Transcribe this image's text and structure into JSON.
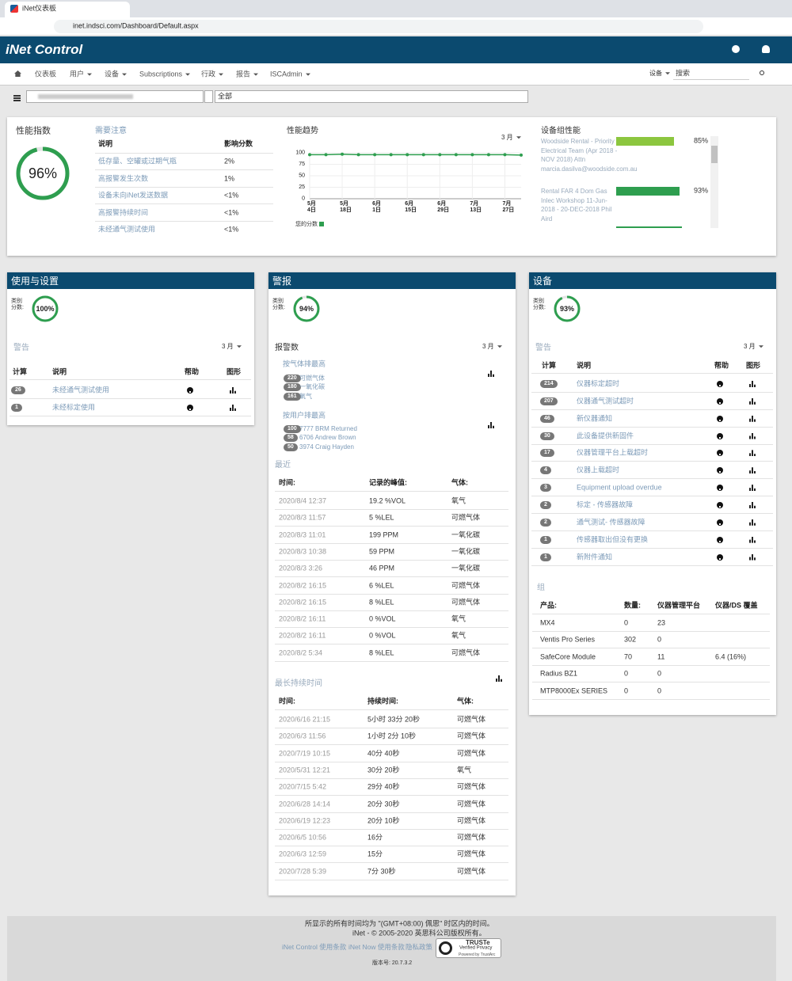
{
  "browser": {
    "tab_title": "iNet仪表板",
    "url": "inet.indsci.com/Dashboard/Default.aspx"
  },
  "nav": {
    "brand": "iNet Control",
    "menu": [
      "仪表板",
      "用户",
      "设备",
      "Subscriptions",
      "行政",
      "报告",
      "ISCAdmin"
    ],
    "search_scope": "设备",
    "search_placeholder": "搜索"
  },
  "filter": {
    "scope": "全部"
  },
  "performance": {
    "title": "性能指数",
    "value": 96,
    "value_label": "96%"
  },
  "attention": {
    "title": "需要注意",
    "headers": [
      "说明",
      "影响分数"
    ],
    "rows": [
      [
        "低存量、空罐或过期气瓶",
        "2%"
      ],
      [
        "高报警发生次数",
        "1%"
      ],
      [
        "设备未向iNet发送数据",
        "<1%"
      ],
      [
        "高报警持续时间",
        "<1%"
      ],
      [
        "未经通气测试使用",
        "<1%"
      ]
    ]
  },
  "chart_data": {
    "type": "line",
    "title": "性能趋势",
    "period": "3 月",
    "categories": [
      "5月4日",
      null,
      "5月18日",
      null,
      "6月1日",
      null,
      "6月15日",
      null,
      "6月29日",
      null,
      "7月13日",
      null,
      "7月27日",
      null
    ],
    "series": [
      {
        "name": "您的分数",
        "color": "#2e9e4f",
        "values": [
          96,
          96,
          97,
          96,
          96,
          96,
          96,
          96,
          96,
          96,
          96,
          96,
          96,
          95
        ]
      }
    ],
    "ylim": [
      0,
      100
    ],
    "yticks": [
      0,
      25,
      50,
      75,
      100
    ],
    "grid": true
  },
  "group_performance": {
    "title": "设备组性能",
    "items": [
      {
        "label": "Woodside Rental - Priority Electrical Team (Apr 2018 - NOV 2018) Attn marcia.dasilva@woodside.com.au",
        "value": 85,
        "value_label": "85%"
      },
      {
        "label": "Rental FAR 4 Dom Gas Inlec Workshop 11-Jun-2018 - 20-DEC-2018 Phil Aird",
        "value": 93,
        "value_label": "93%"
      }
    ]
  },
  "usage": {
    "title": "使用与设置",
    "score_label": "类别分数:",
    "score": 100,
    "score_label_value": "100%",
    "alerts_title": "警告",
    "period": "3 月",
    "headers": [
      "计算",
      "说明",
      "帮助",
      "图形"
    ],
    "rows": [
      {
        "count": 26,
        "text": "未经通气测试使用"
      },
      {
        "count": 1,
        "text": "未经标定使用"
      }
    ]
  },
  "alarms": {
    "title": "警报",
    "score_label": "类别分数:",
    "score": 94,
    "score_label_value": "94%",
    "count_title": "报警数",
    "period": "3 月",
    "by_gas_title": "按气体排最高",
    "by_gas": [
      {
        "count": 220,
        "name": "可燃气体"
      },
      {
        "count": 180,
        "name": "一氧化碳"
      },
      {
        "count": 161,
        "name": "氧气"
      }
    ],
    "by_user_title": "按用户排最高",
    "by_user": [
      {
        "count": 100,
        "name": "7777 BRM Returned"
      },
      {
        "count": 58,
        "name": "6706 Andrew Brown"
      },
      {
        "count": 50,
        "name": "3974 Craig Hayden"
      }
    ],
    "recent_title": "最近",
    "recent_headers": [
      "时间:",
      "记录的峰值:",
      "气体:"
    ],
    "recent": [
      [
        "2020/8/4 12:37",
        "19.2 %VOL",
        "氧气"
      ],
      [
        "2020/8/3 11:57",
        "5 %LEL",
        "可燃气体"
      ],
      [
        "2020/8/3 11:01",
        "199 PPM",
        "一氧化碳"
      ],
      [
        "2020/8/3 10:38",
        "59 PPM",
        "一氧化碳"
      ],
      [
        "2020/8/3 3:26",
        "46 PPM",
        "一氧化碳"
      ],
      [
        "2020/8/2 16:15",
        "6 %LEL",
        "可燃气体"
      ],
      [
        "2020/8/2 16:15",
        "8 %LEL",
        "可燃气体"
      ],
      [
        "2020/8/2 16:11",
        "0 %VOL",
        "氧气"
      ],
      [
        "2020/8/2 16:11",
        "0 %VOL",
        "氧气"
      ],
      [
        "2020/8/2 5:34",
        "8 %LEL",
        "可燃气体"
      ]
    ],
    "longest_title": "最长持续时间",
    "longest_headers": [
      "时间:",
      "持续时间:",
      "气体:"
    ],
    "longest": [
      [
        "2020/6/16 21:15",
        "5小时 33分 20秒",
        "可燃气体"
      ],
      [
        "2020/6/3 11:56",
        "1小时 2分 10秒",
        "可燃气体"
      ],
      [
        "2020/7/19 10:15",
        "40分 40秒",
        "可燃气体"
      ],
      [
        "2020/5/31 12:21",
        "30分 20秒",
        "氧气"
      ],
      [
        "2020/7/15 5:42",
        "29分 40秒",
        "可燃气体"
      ],
      [
        "2020/6/28 14:14",
        "20分 30秒",
        "可燃气体"
      ],
      [
        "2020/6/19 12:23",
        "20分 10秒",
        "可燃气体"
      ],
      [
        "2020/6/5 10:56",
        "16分",
        "可燃气体"
      ],
      [
        "2020/6/3 12:59",
        "15分",
        "可燃气体"
      ],
      [
        "2020/7/28 5:39",
        "7分 30秒",
        "可燃气体"
      ]
    ]
  },
  "equipment": {
    "title": "设备",
    "score_label": "类别分数:",
    "score": 93,
    "score_label_value": "93%",
    "alerts_title": "警告",
    "period": "3 月",
    "headers": [
      "计算",
      "说明",
      "帮助",
      "图形"
    ],
    "rows": [
      {
        "count": 214,
        "text": "仪器标定超时"
      },
      {
        "count": 207,
        "text": "仪器通气测试超时"
      },
      {
        "count": 46,
        "text": "新仪器通知"
      },
      {
        "count": 30,
        "text": "此设备提供新固件"
      },
      {
        "count": 17,
        "text": "仪器管理平台上载超时"
      },
      {
        "count": 4,
        "text": "仪器上载超时"
      },
      {
        "count": 3,
        "text": "Equipment upload overdue"
      },
      {
        "count": 2,
        "text": "标定 - 传感器故障"
      },
      {
        "count": 2,
        "text": "通气测试- 传感器故障"
      },
      {
        "count": 1,
        "text": "传感器取出但没有更换"
      },
      {
        "count": 1,
        "text": "新附件通知"
      }
    ],
    "groups_title": "组",
    "group_headers": [
      "产品:",
      "数量:",
      "仪器管理平台",
      "仪器/DS 覆盖"
    ],
    "groups": [
      [
        "MX4",
        "0",
        "23"
      ],
      [
        "Ventis Pro Series",
        "302",
        "0"
      ],
      [
        "SafeCore Module",
        "70",
        "11",
        "6.4 (16%)"
      ],
      [
        "Radius BZ1",
        "0",
        "0"
      ],
      [
        "MTP8000Ex SERIES",
        "0",
        "0"
      ]
    ]
  },
  "footer": {
    "timezone": "所显示的所有时间均为 \"(GMT+08:00) 佩思\" 时区内的时间。",
    "copyright": "iNet - © 2005-2020 英思科公司版权所有。",
    "links": [
      "iNet Control 使用条款",
      "iNet Now 使用条款",
      "隐私政策"
    ],
    "trust": [
      "TRUSTe",
      "Verified Privacy",
      "Powered by TrustArc"
    ],
    "version": "版本号: 20.7.3.2"
  }
}
